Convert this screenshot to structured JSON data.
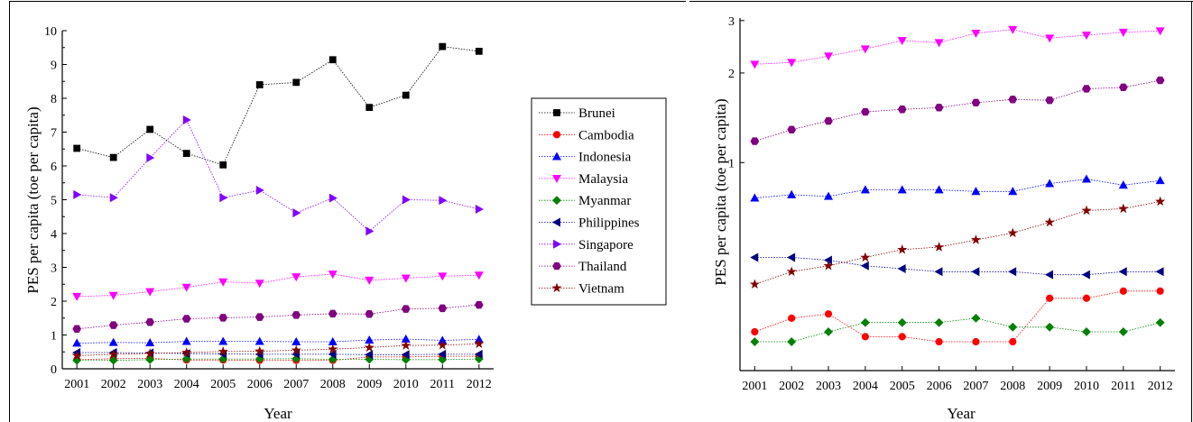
{
  "chart_data": [
    {
      "type": "line",
      "x": [
        2001,
        2002,
        2003,
        2004,
        2005,
        2006,
        2007,
        2008,
        2009,
        2010,
        2011,
        2012
      ],
      "xlabel": "Year",
      "ylabel": "PES per capita (toe per capita)",
      "xlim": [
        2000.6,
        2012.4
      ],
      "ylim": [
        0,
        10
      ],
      "yticks": [
        0,
        1,
        2,
        3,
        4,
        5,
        6,
        7,
        8,
        9,
        10
      ],
      "grid": false,
      "legend": "right",
      "series": [
        {
          "name": "Brunei",
          "color": "#000000",
          "marker": "square",
          "values": [
            6.52,
            6.25,
            7.08,
            6.37,
            6.03,
            8.4,
            8.47,
            9.14,
            7.73,
            8.09,
            9.53,
            9.39
          ]
        },
        {
          "name": "Cambodia",
          "color": "#ff0000",
          "marker": "circle",
          "values": [
            0.27,
            0.3,
            0.31,
            0.26,
            0.26,
            0.25,
            0.25,
            0.25,
            0.35,
            0.35,
            0.37,
            0.37
          ]
        },
        {
          "name": "Indonesia",
          "color": "#0000ff",
          "marker": "triangle-up",
          "values": [
            0.76,
            0.78,
            0.77,
            0.81,
            0.81,
            0.81,
            0.8,
            0.8,
            0.85,
            0.88,
            0.84,
            0.87
          ]
        },
        {
          "name": "Malaysia",
          "color": "#ff00ff",
          "marker": "triangle-down",
          "values": [
            2.14,
            2.17,
            2.28,
            2.41,
            2.57,
            2.53,
            2.72,
            2.8,
            2.62,
            2.68,
            2.74,
            2.77
          ]
        },
        {
          "name": "Myanmar",
          "color": "#008000",
          "marker": "diamond",
          "values": [
            0.25,
            0.25,
            0.27,
            0.29,
            0.29,
            0.29,
            0.3,
            0.28,
            0.28,
            0.27,
            0.27,
            0.29
          ]
        },
        {
          "name": "Philippines",
          "color": "#000080",
          "marker": "triangle-left",
          "values": [
            0.48,
            0.48,
            0.47,
            0.45,
            0.44,
            0.43,
            0.43,
            0.43,
            0.42,
            0.42,
            0.43,
            0.43
          ]
        },
        {
          "name": "Singapore",
          "color": "#8000ff",
          "marker": "triangle-right",
          "values": [
            5.15,
            5.06,
            6.24,
            7.36,
            5.06,
            5.28,
            4.61,
            5.05,
            4.07,
            5.0,
            4.98,
            4.72
          ]
        },
        {
          "name": "Thailand",
          "color": "#800080",
          "marker": "hexagon",
          "values": [
            1.18,
            1.29,
            1.38,
            1.48,
            1.51,
            1.53,
            1.59,
            1.63,
            1.62,
            1.77,
            1.79,
            1.89
          ]
        },
        {
          "name": "Vietnam",
          "color": "#800000",
          "marker": "star",
          "values": [
            0.39,
            0.43,
            0.45,
            0.48,
            0.51,
            0.52,
            0.55,
            0.58,
            0.63,
            0.69,
            0.7,
            0.74
          ]
        }
      ]
    },
    {
      "type": "line",
      "x": [
        2001,
        2002,
        2003,
        2004,
        2005,
        2006,
        2007,
        2008,
        2009,
        2010,
        2011,
        2012
      ],
      "xlabel": "Year",
      "ylabel": "PES per capita (toe per capita)",
      "xlim": [
        2000.6,
        2012.4
      ],
      "ylim": [
        0.2,
        3.06
      ],
      "yscale": "log",
      "yticks": [
        1,
        2,
        3
      ],
      "grid": false,
      "series": [
        {
          "color": "#000080",
          "marker": "triangle-left",
          "values": [
            0.48,
            0.48,
            0.47,
            0.45,
            0.44,
            0.43,
            0.43,
            0.43,
            0.42,
            0.42,
            0.43,
            0.43
          ]
        },
        {
          "color": "#ff0000",
          "marker": "circle",
          "values": [
            0.27,
            0.3,
            0.31,
            0.26,
            0.26,
            0.25,
            0.25,
            0.25,
            0.35,
            0.35,
            0.37,
            0.37
          ]
        },
        {
          "color": "#008000",
          "marker": "diamond",
          "values": [
            0.25,
            0.25,
            0.27,
            0.29,
            0.29,
            0.29,
            0.3,
            0.28,
            0.28,
            0.27,
            0.27,
            0.29
          ]
        },
        {
          "color": "#0000ff",
          "marker": "triangle-up",
          "values": [
            0.76,
            0.78,
            0.77,
            0.81,
            0.81,
            0.81,
            0.8,
            0.8,
            0.85,
            0.88,
            0.84,
            0.87
          ]
        },
        {
          "color": "#ff00ff",
          "marker": "triangle-down",
          "values": [
            2.14,
            2.17,
            2.28,
            2.41,
            2.57,
            2.53,
            2.72,
            2.8,
            2.62,
            2.68,
            2.74,
            2.77
          ]
        },
        {
          "color": "#800080",
          "marker": "hexagon",
          "values": [
            1.18,
            1.29,
            1.38,
            1.48,
            1.51,
            1.53,
            1.59,
            1.63,
            1.62,
            1.77,
            1.79,
            1.89
          ]
        },
        {
          "color": "#800000",
          "marker": "star",
          "values": [
            0.39,
            0.43,
            0.45,
            0.48,
            0.51,
            0.52,
            0.55,
            0.58,
            0.63,
            0.69,
            0.7,
            0.74
          ]
        }
      ]
    }
  ]
}
